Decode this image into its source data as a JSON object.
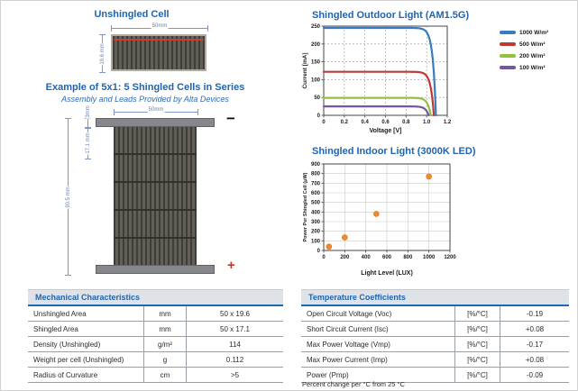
{
  "colors": {
    "brand_blue": "#2065b0",
    "accent_red": "#c0392b",
    "table_header_bg": "#dfe3e8",
    "dimension_line": "#8494c4",
    "scatter_orange": "#f18a2f"
  },
  "left": {
    "unshingled": {
      "title": "Unshingled Cell",
      "width_label": "50mm",
      "height_label": "19.6 mm"
    },
    "example": {
      "title": "Example of 5x1: 5 Shingled Cells in Series",
      "subtitle": "Assembly and Leads Provided by Alta Devices",
      "width_label": "50mm",
      "lead_label": "3mm",
      "cell_label": "17.1 mm",
      "total_label": "90.5 mm",
      "minus_label": "−",
      "plus_label": "+"
    }
  },
  "chart_data": [
    {
      "id": "outdoor",
      "type": "line",
      "title": "Shingled Outdoor Light (AM1.5G)",
      "xlabel": "Voltage [V]",
      "ylabel": "Current [mA]",
      "xlim": [
        0,
        1.2
      ],
      "ylim": [
        0,
        250
      ],
      "xticks": [
        "0",
        "0.2",
        "0.4",
        "0.6",
        "0.8",
        "1.0",
        "1.2"
      ],
      "yticks": [
        "0",
        "50",
        "100",
        "150",
        "200",
        "250"
      ],
      "grid": "dashed",
      "legend_position": "right",
      "series": [
        {
          "name": "1000 W/m²",
          "color": "#3a7abf",
          "isc_mA": 245,
          "voc_V": 1.09
        },
        {
          "name": "500 W/m²",
          "color": "#bf3a33",
          "isc_mA": 122,
          "voc_V": 1.07
        },
        {
          "name": "200 W/m²",
          "color": "#93c13d",
          "isc_mA": 49,
          "voc_V": 1.04
        },
        {
          "name": "100 W/m²",
          "color": "#7456a3",
          "isc_mA": 25,
          "voc_V": 1.02
        }
      ]
    },
    {
      "id": "indoor",
      "type": "scatter",
      "title": "Shingled Indoor Light (3000K LED)",
      "xlabel": "Light Level (LUX)",
      "ylabel": "Power Per Shingled Cell (μW)",
      "xlim": [
        0,
        1200
      ],
      "ylim": [
        0,
        900
      ],
      "xticks": [
        "0",
        "200",
        "400",
        "600",
        "800",
        "1000",
        "1200"
      ],
      "yticks": [
        "0",
        "100",
        "200",
        "300",
        "400",
        "500",
        "600",
        "700",
        "800",
        "900"
      ],
      "grid": "solid",
      "point_color": "#f18a2f",
      "points": [
        [
          50,
          40
        ],
        [
          200,
          135
        ],
        [
          500,
          380
        ],
        [
          1000,
          770
        ]
      ]
    }
  ],
  "tables": {
    "mechanical": {
      "title": "Mechanical Characteristics",
      "rows": [
        [
          "Unshingled Area",
          "mm",
          "50 x 19.6"
        ],
        [
          "Shingled Area",
          "mm",
          "50 x 17.1"
        ],
        [
          "Density (Unshingled)",
          "g/m²",
          "114"
        ],
        [
          "Weight per cell (Unshingled)",
          "g",
          "0.112"
        ],
        [
          "Radius of Curvature",
          "cm",
          ">5"
        ]
      ]
    },
    "temperature": {
      "title": "Temperature Coefficients",
      "rows": [
        [
          "Open Circuit Voltage (Voc)",
          "[%/°C]",
          "-0.19"
        ],
        [
          "Short Circuit Current (Isc)",
          "[%/°C]",
          "+0.08"
        ],
        [
          "Max Power Voltage (Vmp)",
          "[%/°C]",
          "-0.17"
        ],
        [
          "Max Power Current (Imp)",
          "[%/°C]",
          "+0.08"
        ],
        [
          "Power (Pmp)",
          "[%/°C]",
          "-0.09"
        ]
      ],
      "footnote": "Percent change per °C from 25 °C"
    }
  }
}
